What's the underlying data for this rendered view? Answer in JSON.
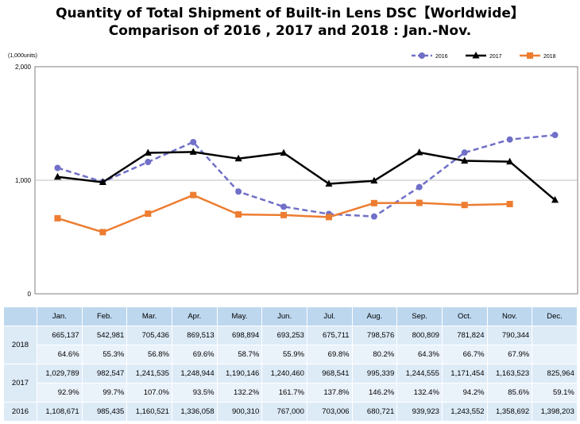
{
  "title_line1": "Quantity of Total Shipment of Built-in Lens DSC【Worldwide】",
  "title_line2": "Comparison of 2016 , 2017 and 2018 : Jan.-Nov.",
  "chart_data": {
    "type": "line",
    "unit_label": "(1,000units)",
    "categories": [
      "Jan.",
      "Feb.",
      "Mar.",
      "Apr.",
      "May.",
      "Jun.",
      "Jul.",
      "Aug.",
      "Sep.",
      "Oct.",
      "Nov.",
      "Dec."
    ],
    "ylim": [
      0,
      2000
    ],
    "yticks": [
      0,
      1000,
      2000
    ],
    "ytick_labels": [
      "0",
      "1,000",
      "2,000"
    ],
    "grid": "horizontal",
    "legend": "top-right",
    "series": [
      {
        "name": "2016",
        "color": "#7070c8",
        "style": "dashed",
        "marker": "circle",
        "values": [
          1108.671,
          985.435,
          1160.521,
          1336.058,
          900.31,
          767.0,
          703.006,
          680.721,
          939.923,
          1243.552,
          1358.692,
          1398.203
        ]
      },
      {
        "name": "2017",
        "color": "#000000",
        "style": "solid",
        "marker": "triangle",
        "values": [
          1029.789,
          982.547,
          1241.535,
          1248.944,
          1190.146,
          1240.46,
          968.541,
          995.339,
          1244.555,
          1171.454,
          1163.523,
          825.964
        ]
      },
      {
        "name": "2018",
        "color": "#ed7d31",
        "style": "solid",
        "marker": "square",
        "values": [
          665.137,
          542.981,
          705.436,
          869.513,
          698.894,
          693.253,
          675.711,
          798.576,
          800.809,
          781.824,
          790.344,
          null
        ]
      }
    ]
  },
  "table": {
    "header": [
      "Jan.",
      "Feb.",
      "Mar.",
      "Apr.",
      "May.",
      "Jun.",
      "Jul.",
      "Aug.",
      "Sep.",
      "Oct.",
      "Nov.",
      "Dec."
    ],
    "rows": [
      {
        "label": "2018",
        "qty": [
          "665,137",
          "542,981",
          "705,436",
          "869,513",
          "698,894",
          "693,253",
          "675,711",
          "798,576",
          "800,809",
          "781,824",
          "790,344",
          ""
        ],
        "pct": [
          "64.6%",
          "55.3%",
          "56.8%",
          "69.6%",
          "58.7%",
          "55.9%",
          "69.8%",
          "80.2%",
          "64.3%",
          "66.7%",
          "67.9%",
          ""
        ]
      },
      {
        "label": "2017",
        "qty": [
          "1,029,789",
          "982,547",
          "1,241,535",
          "1,248,944",
          "1,190,146",
          "1,240,460",
          "968,541",
          "995,339",
          "1,244,555",
          "1,171,454",
          "1,163,523",
          "825,964"
        ],
        "pct": [
          "92.9%",
          "99.7%",
          "107.0%",
          "93.5%",
          "132.2%",
          "161.7%",
          "137.8%",
          "146.2%",
          "132.4%",
          "94.2%",
          "85.6%",
          "59.1%"
        ]
      },
      {
        "label": "2016",
        "qty": [
          "1,108,671",
          "985,435",
          "1,160,521",
          "1,336,058",
          "900,310",
          "767,000",
          "703,006",
          "680,721",
          "939,923",
          "1,243,552",
          "1,358,692",
          "1,398,203"
        ]
      }
    ]
  }
}
